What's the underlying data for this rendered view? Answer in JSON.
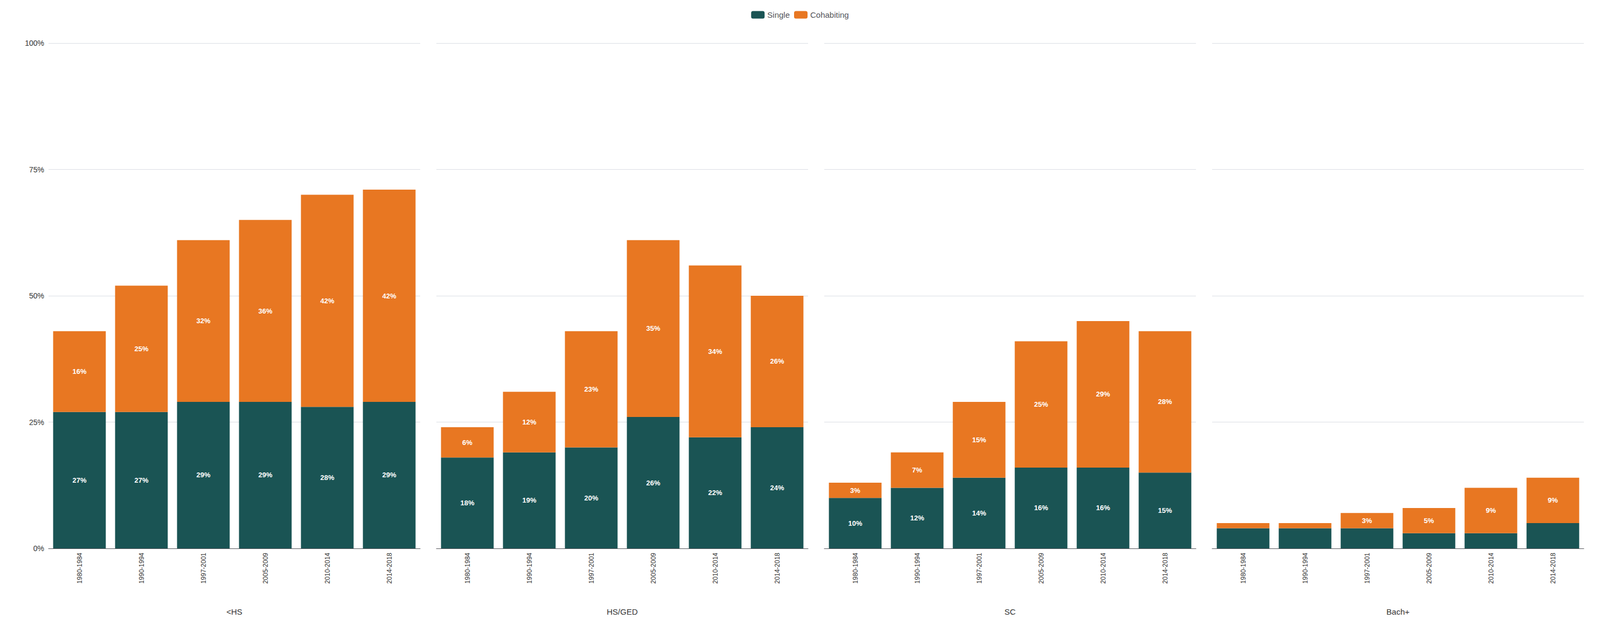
{
  "chart_data": [
    {
      "type": "bar",
      "stacked": true,
      "xlabel": "<HS",
      "categories": [
        "1980-1984",
        "1990-1994",
        "1997-2001",
        "2005-2009",
        "2010-2014",
        "2014-2018"
      ],
      "series": [
        {
          "name": "Single",
          "color": "#1a5454",
          "values": [
            27,
            27,
            29,
            29,
            28,
            29
          ],
          "value_labels": [
            "27%",
            "27%",
            "29%",
            "29%",
            "28%",
            "29%"
          ]
        },
        {
          "name": "Cohabiting",
          "color": "#e87722",
          "values": [
            16,
            25,
            32,
            36,
            42,
            42
          ],
          "value_labels": [
            "16%",
            "25%",
            "32%",
            "36%",
            "42%",
            "42%"
          ]
        }
      ],
      "ylim": [
        0,
        100
      ],
      "yticks": [
        {
          "value": 0,
          "label": "0%"
        },
        {
          "value": 25,
          "label": "25%"
        },
        {
          "value": 50,
          "label": "50%"
        },
        {
          "value": 75,
          "label": "75%"
        },
        {
          "value": 100,
          "label": "100%"
        }
      ],
      "grid": true,
      "data_labels": true,
      "legend": "top"
    },
    {
      "type": "bar",
      "stacked": true,
      "xlabel": "HS/GED",
      "categories": [
        "1980-1984",
        "1990-1994",
        "1997-2001",
        "2005-2009",
        "2010-2014",
        "2014-2018"
      ],
      "series": [
        {
          "name": "Single",
          "color": "#1a5454",
          "values": [
            18,
            19,
            20,
            26,
            22,
            24
          ],
          "value_labels": [
            "18%",
            "19%",
            "20%",
            "26%",
            "22%",
            "24%"
          ]
        },
        {
          "name": "Cohabiting",
          "color": "#e87722",
          "values": [
            6,
            12,
            23,
            35,
            34,
            26
          ],
          "value_labels": [
            "6%",
            "12%",
            "23%",
            "35%",
            "34%",
            "26%"
          ]
        }
      ],
      "ylim": [
        0,
        100
      ],
      "yticks": [
        {
          "value": 0,
          "label": "0%"
        },
        {
          "value": 25,
          "label": "25%"
        },
        {
          "value": 50,
          "label": "50%"
        },
        {
          "value": 75,
          "label": "75%"
        },
        {
          "value": 100,
          "label": "100%"
        }
      ],
      "grid": true,
      "data_labels": true,
      "tick_labels": "x"
    },
    {
      "type": "bar",
      "stacked": true,
      "xlabel": "SC",
      "categories": [
        "1980-1984",
        "1990-1994",
        "1997-2001",
        "2005-2009",
        "2010-2014",
        "2014-2018"
      ],
      "series": [
        {
          "name": "Single",
          "color": "#1a5454",
          "values": [
            10,
            12,
            14,
            16,
            16,
            15
          ],
          "value_labels": [
            "10%",
            "12%",
            "14%",
            "16%",
            "16%",
            "15%"
          ]
        },
        {
          "name": "Cohabiting",
          "color": "#e87722",
          "values": [
            3,
            7,
            15,
            25,
            29,
            28
          ],
          "value_labels": [
            "3%",
            "7%",
            "15%",
            "25%",
            "29%",
            "28%"
          ]
        }
      ],
      "ylim": [
        0,
        100
      ],
      "yticks": [
        {
          "value": 0,
          "label": "0%"
        },
        {
          "value": 25,
          "label": "25%"
        },
        {
          "value": 50,
          "label": "50%"
        },
        {
          "value": 75,
          "label": "75%"
        },
        {
          "value": 100,
          "label": "100%"
        }
      ],
      "grid": true,
      "data_labels": true,
      "tick_labels": "x"
    },
    {
      "type": "bar",
      "stacked": true,
      "xlabel": "Bach+",
      "categories": [
        "1980-1984",
        "1990-1994",
        "1997-2001",
        "2005-2009",
        "2010-2014",
        "2014-2018"
      ],
      "series": [
        {
          "name": "Single",
          "color": "#1a5454",
          "values": [
            4,
            4,
            4,
            3,
            3,
            5
          ],
          "value_labels": [
            null,
            null,
            null,
            null,
            null,
            null
          ]
        },
        {
          "name": "Cohabiting",
          "color": "#e87722",
          "values": [
            1,
            1,
            3,
            5,
            9,
            9
          ],
          "value_labels": [
            null,
            null,
            "3%",
            "5%",
            "9%",
            "9%"
          ]
        }
      ],
      "ylim": [
        0,
        100
      ],
      "yticks": [
        {
          "value": 0,
          "label": "0%"
        },
        {
          "value": 25,
          "label": "25%"
        },
        {
          "value": 50,
          "label": "50%"
        },
        {
          "value": 75,
          "label": "75%"
        },
        {
          "value": 100,
          "label": "100%"
        }
      ],
      "grid": true,
      "data_labels": true,
      "tick_labels": "x"
    }
  ]
}
